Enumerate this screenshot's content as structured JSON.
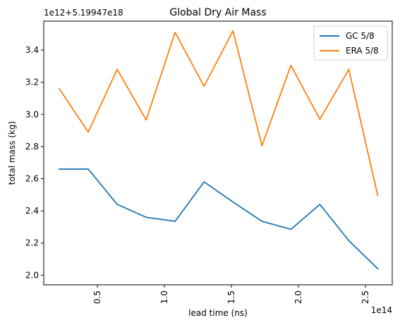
{
  "chart_data": {
    "type": "line",
    "title": "Global Dry Air Mass",
    "xlabel": "lead time (ns)",
    "ylabel": "total mass (kg)",
    "x_offset_text": "1e14",
    "y_offset_text": "1e12+5.19947e18",
    "x_tick_labels": [
      "0.5",
      "1.0",
      "1.5",
      "2.0",
      "2.5"
    ],
    "x_ticks": [
      0.5,
      1.0,
      1.5,
      2.0,
      2.5
    ],
    "y_tick_labels": [
      "2.0",
      "2.2",
      "2.4",
      "2.6",
      "2.8",
      "3.0",
      "3.2",
      "3.4"
    ],
    "y_ticks": [
      2.0,
      2.2,
      2.4,
      2.6,
      2.8,
      3.0,
      3.2,
      3.4
    ],
    "xlim": [
      0.1,
      2.7
    ],
    "ylim": [
      1.94,
      3.58
    ],
    "x_scale_note": "x values in units of 1e14 ns; y values are offsets in units of 1e12 kg above 5.19947e18",
    "x": [
      0.216,
      0.432,
      0.648,
      0.864,
      1.08,
      1.296,
      1.512,
      1.728,
      1.944,
      2.16,
      2.376,
      2.592
    ],
    "series": [
      {
        "name": "GC 5/8",
        "color": "#1f77b4",
        "values": [
          2.66,
          2.66,
          2.44,
          2.36,
          2.335,
          2.58,
          2.455,
          2.335,
          2.285,
          2.44,
          2.215,
          2.04
        ]
      },
      {
        "name": "ERA 5/8",
        "color": "#ff7f0e",
        "values": [
          3.16,
          2.89,
          3.28,
          2.965,
          3.51,
          3.175,
          3.52,
          2.805,
          3.305,
          2.97,
          3.28,
          2.495
        ]
      }
    ],
    "legend_position": "top-right",
    "grid": false
  }
}
